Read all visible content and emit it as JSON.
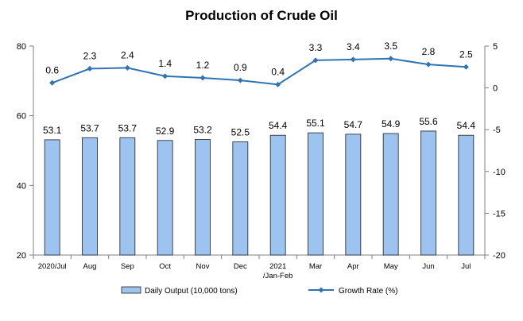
{
  "chart_data": {
    "type": "bar",
    "title": "Production of Crude Oil",
    "categories": [
      [
        "2020/Jul"
      ],
      [
        "Aug"
      ],
      [
        "Sep"
      ],
      [
        "Oct"
      ],
      [
        "Nov"
      ],
      [
        "Dec"
      ],
      [
        "2021",
        "/Jan-Feb"
      ],
      [
        "Mar"
      ],
      [
        "Apr"
      ],
      [
        "May"
      ],
      [
        "Jun"
      ],
      [
        "Jul"
      ]
    ],
    "series": [
      {
        "name": "Daily Output (10,000 tons)",
        "type": "bar",
        "axis": "left",
        "color": "#9dc3f0",
        "values": [
          53.1,
          53.7,
          53.7,
          52.9,
          53.2,
          52.5,
          54.4,
          55.1,
          54.7,
          54.9,
          55.6,
          54.4
        ]
      },
      {
        "name": "Growth Rate (%)",
        "type": "line",
        "axis": "right",
        "color": "#2e74b5",
        "values": [
          0.6,
          2.3,
          2.4,
          1.4,
          1.2,
          0.9,
          0.4,
          3.3,
          3.4,
          3.5,
          2.8,
          2.5
        ]
      }
    ],
    "y_left": {
      "min": 20,
      "max": 80,
      "ticks": [
        20,
        40,
        60,
        80
      ]
    },
    "y_right": {
      "min": -20,
      "max": 5,
      "ticks": [
        -20,
        -15,
        -10,
        -5,
        0,
        5
      ]
    },
    "legend_position": "bottom",
    "grid": false
  }
}
